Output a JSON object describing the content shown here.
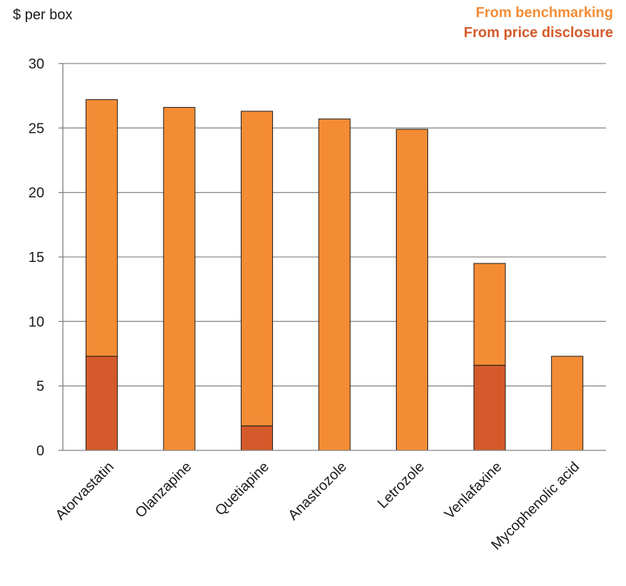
{
  "chart_data": {
    "type": "bar",
    "stacked": true,
    "ylabel": "$ per box",
    "ylim": [
      0,
      30
    ],
    "yticks": [
      0,
      5,
      10,
      15,
      20,
      25,
      30
    ],
    "grid": true,
    "legend_position": "top-right",
    "categories": [
      "Atorvastatin",
      "Olanzapine",
      "Quetiapine",
      "Anastrozole",
      "Letrozole",
      "Venlafaxine",
      "Mycophenolic acid"
    ],
    "series": [
      {
        "name": "From price disclosure",
        "color": "#d55a2b",
        "values": [
          7.3,
          0,
          1.9,
          0,
          0,
          6.6,
          0
        ]
      },
      {
        "name": "From benchmarking",
        "color": "#f48c35",
        "values": [
          19.9,
          26.6,
          24.4,
          25.7,
          24.9,
          7.9,
          7.3
        ]
      }
    ],
    "legend": [
      {
        "label": "From benchmarking",
        "color": "#f48c35"
      },
      {
        "label": "From price disclosure",
        "color": "#d55a2b"
      }
    ]
  }
}
